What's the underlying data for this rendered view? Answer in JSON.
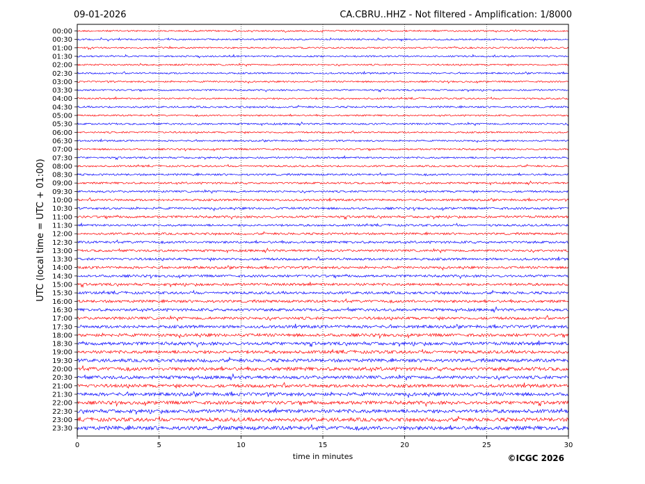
{
  "header": {
    "date": "09-01-2026",
    "station_title": "CA.CBRU..HHZ - Not filtered - Amplification: 1/8000"
  },
  "footer": {
    "copyright": "©ICGC 2026"
  },
  "chart_data": {
    "type": "line",
    "title": "CA.CBRU..HHZ - Not filtered - Amplification: 1/8000",
    "xlabel": "time in minutes",
    "ylabel": "UTC (local time = UTC + 01:00)",
    "xlim": [
      0,
      30
    ],
    "xticks": [
      0,
      5,
      10,
      15,
      20,
      25,
      30
    ],
    "xtick_labels": [
      "0",
      "5",
      "10",
      "15",
      "20",
      "25",
      "30"
    ],
    "vertical_gridlines_at": [
      5,
      10,
      15,
      20,
      25
    ],
    "trace_colors": [
      "#ff0000",
      "#0000ff"
    ],
    "row_labels": [
      "00:00",
      "00:30",
      "01:00",
      "01:30",
      "02:00",
      "02:30",
      "03:00",
      "03:30",
      "04:00",
      "04:30",
      "05:00",
      "05:30",
      "06:00",
      "06:30",
      "07:00",
      "07:30",
      "08:00",
      "08:30",
      "09:00",
      "09:30",
      "10:00",
      "10:30",
      "11:00",
      "11:30",
      "12:00",
      "12:30",
      "13:00",
      "13:30",
      "14:00",
      "14:30",
      "15:00",
      "15:30",
      "16:00",
      "16:30",
      "17:00",
      "17:30",
      "18:00",
      "18:30",
      "19:00",
      "19:30",
      "20:00",
      "20:30",
      "21:00",
      "21:30",
      "22:00",
      "22:30",
      "23:00",
      "23:30"
    ],
    "row_noise_level": [
      1.0,
      1.0,
      1.0,
      1.0,
      1.0,
      1.0,
      1.0,
      1.0,
      1.0,
      1.1,
      1.0,
      1.1,
      1.0,
      1.0,
      1.1,
      1.1,
      1.1,
      1.2,
      1.2,
      1.2,
      1.3,
      1.4,
      1.4,
      1.3,
      1.3,
      1.4,
      1.4,
      1.5,
      1.5,
      1.5,
      1.6,
      1.6,
      1.6,
      1.7,
      1.7,
      1.8,
      1.9,
      2.0,
      1.9,
      2.0,
      2.2,
      2.0,
      2.0,
      2.1,
      2.1,
      2.2,
      2.3,
      2.4
    ]
  }
}
